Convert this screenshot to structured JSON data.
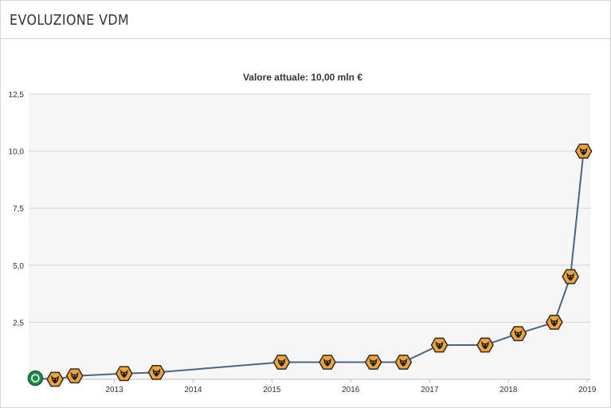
{
  "panel": {
    "title": "EVOLUZIONE VDM"
  },
  "colors": {
    "plot_background": "#f6f6f6",
    "grid": "#d4d4d4",
    "line": "#4c6580",
    "marker_fill": "#f2a33a",
    "marker_stroke": "#2a2a2a",
    "first_marker": "#1f8f4a"
  },
  "chart_data": {
    "type": "line",
    "title": "Valore attuale: 10,00 mln €",
    "xlabel": "",
    "ylabel": "",
    "ylim": [
      0,
      12.5
    ],
    "xlim": [
      "2011-12-01",
      "2019-01-15"
    ],
    "grid": true,
    "y_ticks": [
      "2,5",
      "5,0",
      "7,5",
      "10,0",
      "12,5"
    ],
    "y_tick_values": [
      2.5,
      5.0,
      7.5,
      10.0,
      12.5
    ],
    "x_ticks": [
      "2013",
      "2014",
      "2015",
      "2016",
      "2017",
      "2018",
      "2019"
    ],
    "x_tick_dates": [
      "2013-01-01",
      "2014-01-01",
      "2015-01-01",
      "2016-01-01",
      "2017-01-01",
      "2018-01-01",
      "2019-01-01"
    ],
    "series": [
      {
        "points": [
          {
            "x": "2012-01-01",
            "y": 0.05,
            "marker": "club-crest-green"
          },
          {
            "x": "2012-04-01",
            "y": 0.0,
            "marker": "wolf-crest"
          },
          {
            "x": "2012-07-01",
            "y": 0.15,
            "marker": "wolf-crest"
          },
          {
            "x": "2013-02-15",
            "y": 0.25,
            "marker": "wolf-crest"
          },
          {
            "x": "2013-07-15",
            "y": 0.3,
            "marker": "wolf-crest"
          },
          {
            "x": "2015-02-15",
            "y": 0.75,
            "marker": "wolf-crest"
          },
          {
            "x": "2015-09-15",
            "y": 0.75,
            "marker": "wolf-crest"
          },
          {
            "x": "2016-04-15",
            "y": 0.75,
            "marker": "wolf-crest"
          },
          {
            "x": "2016-09-01",
            "y": 0.75,
            "marker": "wolf-crest"
          },
          {
            "x": "2017-02-15",
            "y": 1.5,
            "marker": "wolf-crest"
          },
          {
            "x": "2017-09-15",
            "y": 1.5,
            "marker": "wolf-crest"
          },
          {
            "x": "2018-02-15",
            "y": 2.0,
            "marker": "wolf-crest"
          },
          {
            "x": "2018-08-01",
            "y": 2.5,
            "marker": "wolf-crest"
          },
          {
            "x": "2018-10-15",
            "y": 4.5,
            "marker": "wolf-crest"
          },
          {
            "x": "2018-12-15",
            "y": 10.0,
            "marker": "wolf-crest"
          }
        ]
      }
    ]
  }
}
